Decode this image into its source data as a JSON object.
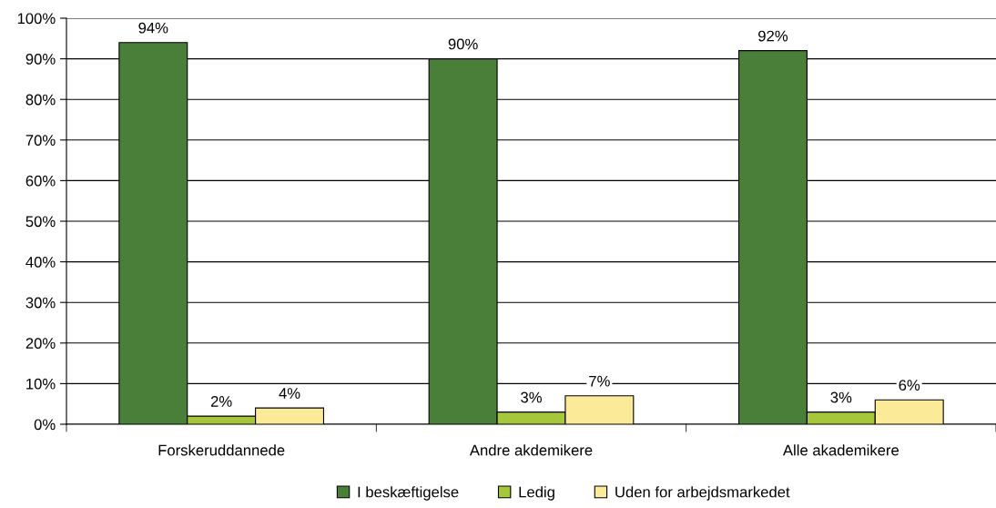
{
  "chart_data": {
    "type": "bar",
    "categories": [
      "Forskeruddannede",
      "Andre akdemikere",
      "Alle akademikere"
    ],
    "series": [
      {
        "name": "I beskæftigelse",
        "color": "#4a7f3a",
        "values": [
          94,
          90,
          92
        ],
        "value_labels": [
          "94%",
          "90%",
          "92%"
        ]
      },
      {
        "name": "Ledig",
        "color": "#a5c739",
        "values": [
          2,
          3,
          3
        ],
        "value_labels": [
          "2%",
          "3%",
          "3%"
        ]
      },
      {
        "name": "Uden for arbejdsmarkedet",
        "color": "#fbea98",
        "values": [
          4,
          7,
          6
        ],
        "value_labels": [
          "4%",
          "7%",
          "6%"
        ]
      }
    ],
    "ylim": [
      0,
      100
    ],
    "yticks": [
      {
        "value": 0,
        "label": "0%"
      },
      {
        "value": 10,
        "label": "10%"
      },
      {
        "value": 20,
        "label": "20%"
      },
      {
        "value": 30,
        "label": "30%"
      },
      {
        "value": 40,
        "label": "40%"
      },
      {
        "value": 50,
        "label": "50%"
      },
      {
        "value": 60,
        "label": "60%"
      },
      {
        "value": 70,
        "label": "70%"
      },
      {
        "value": 80,
        "label": "80%"
      },
      {
        "value": 90,
        "label": "90%"
      },
      {
        "value": 100,
        "label": "100%"
      }
    ],
    "grid": "y",
    "legend": "bottom"
  }
}
